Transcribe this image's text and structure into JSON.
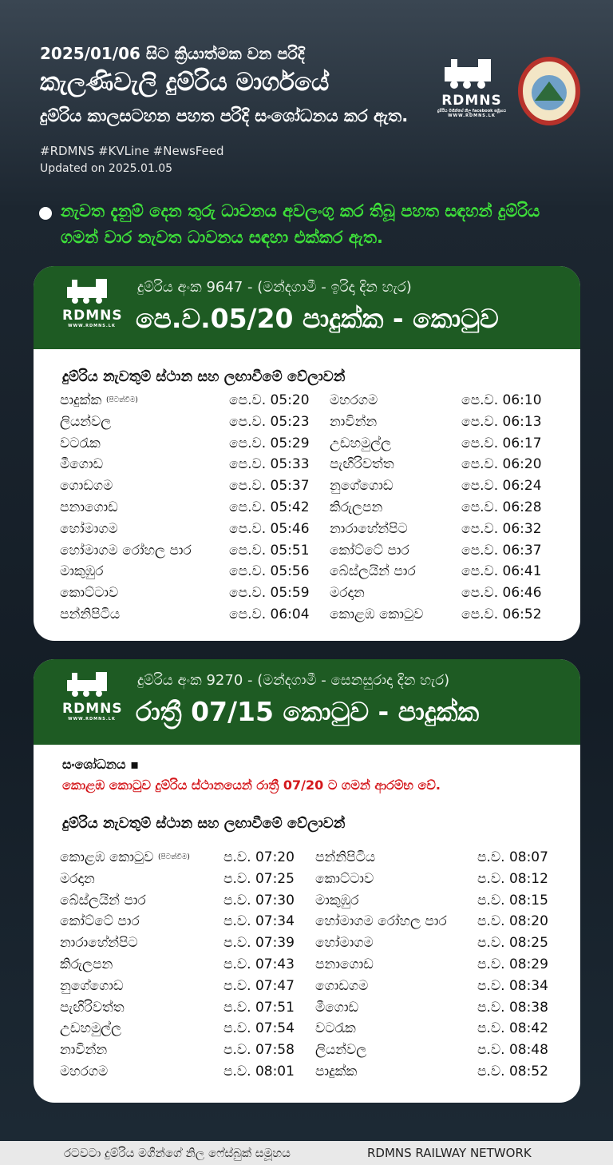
{
  "header": {
    "line1": "2025/01/06 සිට ක්‍රියාත්මක වන පරිදි",
    "line2": "කැලණිවැලි දුම්රිය මාර්ගයේ",
    "line3": "දුම්රිය කාලසටහන පහත පරිදි සංශෝධනය කර ඇත.",
    "hashtags": "#RDMNS #KVLine #NewsFeed",
    "updated": "Updated on 2025.01.05"
  },
  "logo": {
    "name": "RDMNS",
    "tagline": "දුම්රිය මගීන්ගේ නිල facebook සමූහය",
    "url": "WWW.RDMNS.LK"
  },
  "notice": "නැවත දැනුම් දෙන තුරු ධාවනය අවලංගු කර තිබූ පහත සඳහන් දුම්රිය ගමන් වාර නැවත ධාවනය සඳහා එක්කර ඇත.",
  "cards": [
    {
      "subtitle": "දුම්රිය අංක 9647 - (මන්දගාමී - ඉරිදා දින හැර)",
      "title": "පෙ.ව.05/20 පාදුක්ක - කොටුව",
      "heading": "දුම්රිය නැවතුම් ස්ථාන සහ ලඟාවීමේ වේලාවන්",
      "first_note": "(පිටත්වීම)",
      "rows": [
        [
          "පාදුක්ක",
          "පෙ.ව. 05:20",
          "මහරගම",
          "පෙ.ව. 06:10"
        ],
        [
          "ලියන්වල",
          "පෙ.ව. 05:23",
          "නාවින්න",
          "පෙ.ව. 06:13"
        ],
        [
          "වටරැක",
          "පෙ.ව. 05:29",
          "උඩහමුල්ල",
          "පෙ.ව. 06:17"
        ],
        [
          "මීගොඩ",
          "පෙ.ව. 05:33",
          "පැඟිරිවත්ත",
          "පෙ.ව. 06:20"
        ],
        [
          "ගොඩගම",
          "පෙ.ව. 05:37",
          "නුගේගොඩ",
          "පෙ.ව. 06:24"
        ],
        [
          "පනාගොඩ",
          "පෙ.ව. 05:42",
          "කිරුලපන",
          "පෙ.ව. 06:28"
        ],
        [
          "හෝමාගම",
          "පෙ.ව. 05:46",
          "නාරාහේන්පිට",
          "පෙ.ව. 06:32"
        ],
        [
          "හෝමාගම රෝහල පාර",
          "පෙ.ව. 05:51",
          "කෝට්ටේ පාර",
          "පෙ.ව. 06:37"
        ],
        [
          "මාකුඹුර",
          "පෙ.ව. 05:56",
          "බේස්ලයින් පාර",
          "පෙ.ව. 06:41"
        ],
        [
          "කොට්ටාව",
          "පෙ.ව. 05:59",
          "මරදාන",
          "පෙ.ව. 06:46"
        ],
        [
          "පන්නිපිටිය",
          "පෙ.ව. 06:04",
          "කොළඹ කොටුව",
          "පෙ.ව. 06:52"
        ]
      ]
    },
    {
      "subtitle": "දුම්රිය අංක 9270 - (මන්දගාමී - සෙනසුරාදා දින හැර)",
      "title": "රාත්‍රී 07/15 කොටුව - පාදුක්ක",
      "revision_label": "සංශෝධනය ▪",
      "revision": "කොළඹ කොටුව දුම්රිය ස්ථානයෙන් රාත්‍රී 07/20 ට ගමන් ආරම්භ වේ.",
      "heading": "දුම්රිය නැවතුම් ස්ථාන සහ ලඟාවීමේ වේලාවන්",
      "first_note": "(පිටත්වීම)",
      "rows": [
        [
          "කොළඹ කොටුව",
          "ප.ව. 07:20",
          "පන්නිපිටිය",
          "ප.ව. 08:07"
        ],
        [
          "මරදාන",
          "ප.ව. 07:25",
          "කොට්ටාව",
          "ප.ව. 08:12"
        ],
        [
          "බේස්ලයින් පාර",
          "ප.ව. 07:30",
          "මාකුඹුර",
          "ප.ව. 08:15"
        ],
        [
          "කෝට්ටේ පාර",
          "ප.ව. 07:34",
          "හෝමාගම රෝහල පාර",
          "ප.ව. 08:20"
        ],
        [
          "නාරාහේන්පිට",
          "ප.ව. 07:39",
          "හෝමාගම",
          "ප.ව. 08:25"
        ],
        [
          "කිරුලපන",
          "ප.ව. 07:43",
          "පනාගොඩ",
          "ප.ව. 08:29"
        ],
        [
          "නුගේගොඩ",
          "ප.ව. 07:47",
          "ගොඩගම",
          "ප.ව. 08:34"
        ],
        [
          "පැඟිරිවත්ත",
          "ප.ව. 07:51",
          "මීගොඩ",
          "ප.ව. 08:38"
        ],
        [
          "උඩහමුල්ල",
          "ප.ව. 07:54",
          "වටරැක",
          "ප.ව. 08:42"
        ],
        [
          "නාවින්න",
          "ප.ව. 07:58",
          "ලියන්වල",
          "ප.ව. 08:48"
        ],
        [
          "මහරගම",
          "ප.ව. 08:01",
          "පාදුක්ක",
          "ප.ව. 08:52"
        ]
      ]
    }
  ],
  "footer": {
    "group": "රටවටා දුම්රිය මගීන්ගේ නිල ෆේස්බුක් සමූහය",
    "network": "RDMNS RAILWAY NETWORK"
  }
}
